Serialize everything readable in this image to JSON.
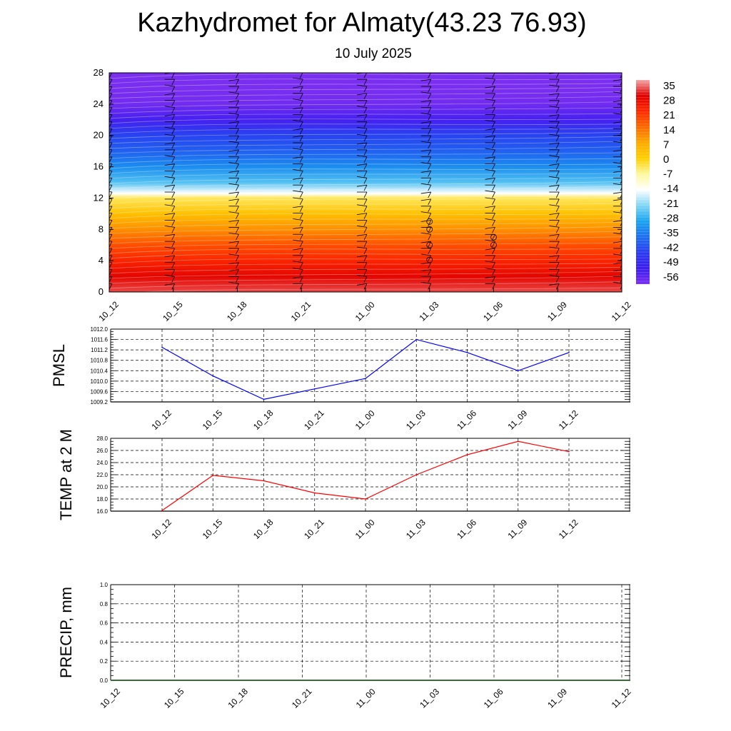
{
  "header": {
    "title": "Kazhydromet for Almaty(43.23 76.93)",
    "subtitle": "10 July 2025"
  },
  "chart_data": [
    {
      "type": "heatmap",
      "title": "",
      "xlabel": "",
      "ylabel": "",
      "x_ticks": [
        "10_12",
        "10_15",
        "10_18",
        "10_21",
        "11_00",
        "11_03",
        "11_06",
        "11_09",
        "11_12"
      ],
      "y_ticks": [
        0,
        4,
        8,
        12,
        16,
        20,
        24,
        28
      ],
      "ylim": [
        0,
        28
      ],
      "colorbar_labels": [
        "35",
        "28",
        "21",
        "14",
        "7",
        "0",
        "-7",
        "-14",
        "-21",
        "-28",
        "-35",
        "-42",
        "-49",
        "-56"
      ],
      "colorbar_stops": [
        "#f4a6a6",
        "#e00000",
        "#ff2a00",
        "#ff6a00",
        "#ffaa00",
        "#ffd000",
        "#fff8a0",
        "#ffffff",
        "#7fd6f5",
        "#19a4ef",
        "#1e6ff0",
        "#2a3cf0",
        "#3c1ef0",
        "#7a2ef0"
      ],
      "temperature_profile": {
        "levels": [
          0,
          2,
          4,
          6,
          8,
          10,
          12,
          12.6,
          14,
          16,
          18,
          20,
          22,
          24,
          26,
          28
        ],
        "values": [
          31,
          27,
          22,
          17,
          10,
          3,
          -4,
          -14,
          -24,
          -31,
          -37,
          -41,
          -50,
          -55,
          -58,
          -62
        ]
      },
      "grid": false
    },
    {
      "type": "line",
      "ylabel": "PMSL",
      "categories": [
        "10_12",
        "10_15",
        "10_18",
        "10_21",
        "11_00",
        "11_03",
        "11_06",
        "11_09",
        "11_12"
      ],
      "series": [
        {
          "values": [
            1011.3,
            1010.2,
            1009.3,
            1009.7,
            1010.1,
            1011.6,
            1011.1,
            1010.4,
            1011.1
          ],
          "color": "#0000ff"
        }
      ],
      "ylim": [
        1009.2,
        1012.0
      ],
      "y_ticks": [
        "1009.2",
        "1009.6",
        "1010.0",
        "1010.4",
        "1010.8",
        "1011.2",
        "1011.6",
        "1012.0"
      ],
      "grid": true
    },
    {
      "type": "line",
      "ylabel": "TEMP at 2 M",
      "categories": [
        "10_12",
        "10_15",
        "10_18",
        "10_21",
        "11_00",
        "11_03",
        "11_06",
        "11_09",
        "11_12"
      ],
      "series": [
        {
          "values": [
            16.1,
            21.9,
            21.0,
            19.0,
            18.0,
            22.0,
            25.3,
            27.5,
            25.8
          ],
          "color": "#ff0000"
        }
      ],
      "ylim": [
        16.0,
        28.0
      ],
      "y_ticks": [
        "16.0",
        "18.0",
        "20.0",
        "22.0",
        "24.0",
        "26.0",
        "28.0"
      ],
      "grid": true
    },
    {
      "type": "bar",
      "ylabel": "PRECIP, mm",
      "categories": [
        "10_12",
        "10_15",
        "10_18",
        "10_21",
        "11_00",
        "11_03",
        "11_06",
        "11_09",
        "11_12"
      ],
      "values": [
        0,
        0,
        0,
        0,
        0,
        0,
        0,
        0,
        0
      ],
      "ylim": [
        0.0,
        1.0
      ],
      "y_ticks": [
        "0.0",
        "0.2",
        "0.4",
        "0.6",
        "0.8",
        "1.0"
      ],
      "grid": true
    }
  ]
}
